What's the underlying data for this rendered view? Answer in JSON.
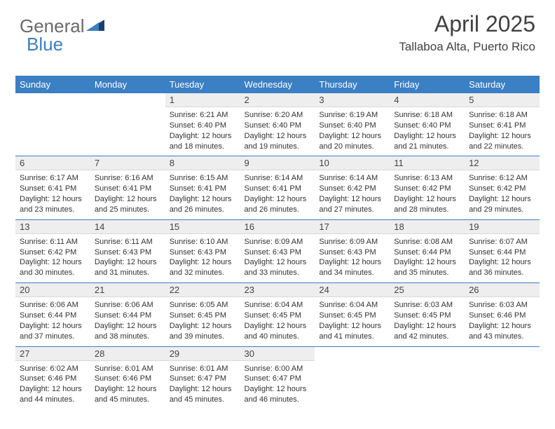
{
  "logo": {
    "part1": "General",
    "part2": "Blue"
  },
  "header": {
    "month_year": "April 2025",
    "location": "Tallaboa Alta, Puerto Rico"
  },
  "colors": {
    "header_bg": "#3b7fc4",
    "header_text": "#ffffff",
    "daynum_bg": "#eeeeee",
    "border": "#3b7fc4",
    "logo_gray": "#6a6a6a",
    "logo_blue": "#3b7fc4",
    "body_text": "#333333"
  },
  "weekdays": [
    "Sunday",
    "Monday",
    "Tuesday",
    "Wednesday",
    "Thursday",
    "Friday",
    "Saturday"
  ],
  "grid": [
    [
      null,
      null,
      {
        "n": "1",
        "sr": "Sunrise: 6:21 AM",
        "ss": "Sunset: 6:40 PM",
        "dl": "Daylight: 12 hours and 18 minutes."
      },
      {
        "n": "2",
        "sr": "Sunrise: 6:20 AM",
        "ss": "Sunset: 6:40 PM",
        "dl": "Daylight: 12 hours and 19 minutes."
      },
      {
        "n": "3",
        "sr": "Sunrise: 6:19 AM",
        "ss": "Sunset: 6:40 PM",
        "dl": "Daylight: 12 hours and 20 minutes."
      },
      {
        "n": "4",
        "sr": "Sunrise: 6:18 AM",
        "ss": "Sunset: 6:40 PM",
        "dl": "Daylight: 12 hours and 21 minutes."
      },
      {
        "n": "5",
        "sr": "Sunrise: 6:18 AM",
        "ss": "Sunset: 6:41 PM",
        "dl": "Daylight: 12 hours and 22 minutes."
      }
    ],
    [
      {
        "n": "6",
        "sr": "Sunrise: 6:17 AM",
        "ss": "Sunset: 6:41 PM",
        "dl": "Daylight: 12 hours and 23 minutes."
      },
      {
        "n": "7",
        "sr": "Sunrise: 6:16 AM",
        "ss": "Sunset: 6:41 PM",
        "dl": "Daylight: 12 hours and 25 minutes."
      },
      {
        "n": "8",
        "sr": "Sunrise: 6:15 AM",
        "ss": "Sunset: 6:41 PM",
        "dl": "Daylight: 12 hours and 26 minutes."
      },
      {
        "n": "9",
        "sr": "Sunrise: 6:14 AM",
        "ss": "Sunset: 6:41 PM",
        "dl": "Daylight: 12 hours and 26 minutes."
      },
      {
        "n": "10",
        "sr": "Sunrise: 6:14 AM",
        "ss": "Sunset: 6:42 PM",
        "dl": "Daylight: 12 hours and 27 minutes."
      },
      {
        "n": "11",
        "sr": "Sunrise: 6:13 AM",
        "ss": "Sunset: 6:42 PM",
        "dl": "Daylight: 12 hours and 28 minutes."
      },
      {
        "n": "12",
        "sr": "Sunrise: 6:12 AM",
        "ss": "Sunset: 6:42 PM",
        "dl": "Daylight: 12 hours and 29 minutes."
      }
    ],
    [
      {
        "n": "13",
        "sr": "Sunrise: 6:11 AM",
        "ss": "Sunset: 6:42 PM",
        "dl": "Daylight: 12 hours and 30 minutes."
      },
      {
        "n": "14",
        "sr": "Sunrise: 6:11 AM",
        "ss": "Sunset: 6:43 PM",
        "dl": "Daylight: 12 hours and 31 minutes."
      },
      {
        "n": "15",
        "sr": "Sunrise: 6:10 AM",
        "ss": "Sunset: 6:43 PM",
        "dl": "Daylight: 12 hours and 32 minutes."
      },
      {
        "n": "16",
        "sr": "Sunrise: 6:09 AM",
        "ss": "Sunset: 6:43 PM",
        "dl": "Daylight: 12 hours and 33 minutes."
      },
      {
        "n": "17",
        "sr": "Sunrise: 6:09 AM",
        "ss": "Sunset: 6:43 PM",
        "dl": "Daylight: 12 hours and 34 minutes."
      },
      {
        "n": "18",
        "sr": "Sunrise: 6:08 AM",
        "ss": "Sunset: 6:44 PM",
        "dl": "Daylight: 12 hours and 35 minutes."
      },
      {
        "n": "19",
        "sr": "Sunrise: 6:07 AM",
        "ss": "Sunset: 6:44 PM",
        "dl": "Daylight: 12 hours and 36 minutes."
      }
    ],
    [
      {
        "n": "20",
        "sr": "Sunrise: 6:06 AM",
        "ss": "Sunset: 6:44 PM",
        "dl": "Daylight: 12 hours and 37 minutes."
      },
      {
        "n": "21",
        "sr": "Sunrise: 6:06 AM",
        "ss": "Sunset: 6:44 PM",
        "dl": "Daylight: 12 hours and 38 minutes."
      },
      {
        "n": "22",
        "sr": "Sunrise: 6:05 AM",
        "ss": "Sunset: 6:45 PM",
        "dl": "Daylight: 12 hours and 39 minutes."
      },
      {
        "n": "23",
        "sr": "Sunrise: 6:04 AM",
        "ss": "Sunset: 6:45 PM",
        "dl": "Daylight: 12 hours and 40 minutes."
      },
      {
        "n": "24",
        "sr": "Sunrise: 6:04 AM",
        "ss": "Sunset: 6:45 PM",
        "dl": "Daylight: 12 hours and 41 minutes."
      },
      {
        "n": "25",
        "sr": "Sunrise: 6:03 AM",
        "ss": "Sunset: 6:45 PM",
        "dl": "Daylight: 12 hours and 42 minutes."
      },
      {
        "n": "26",
        "sr": "Sunrise: 6:03 AM",
        "ss": "Sunset: 6:46 PM",
        "dl": "Daylight: 12 hours and 43 minutes."
      }
    ],
    [
      {
        "n": "27",
        "sr": "Sunrise: 6:02 AM",
        "ss": "Sunset: 6:46 PM",
        "dl": "Daylight: 12 hours and 44 minutes."
      },
      {
        "n": "28",
        "sr": "Sunrise: 6:01 AM",
        "ss": "Sunset: 6:46 PM",
        "dl": "Daylight: 12 hours and 45 minutes."
      },
      {
        "n": "29",
        "sr": "Sunrise: 6:01 AM",
        "ss": "Sunset: 6:47 PM",
        "dl": "Daylight: 12 hours and 45 minutes."
      },
      {
        "n": "30",
        "sr": "Sunrise: 6:00 AM",
        "ss": "Sunset: 6:47 PM",
        "dl": "Daylight: 12 hours and 46 minutes."
      },
      null,
      null,
      null
    ]
  ]
}
